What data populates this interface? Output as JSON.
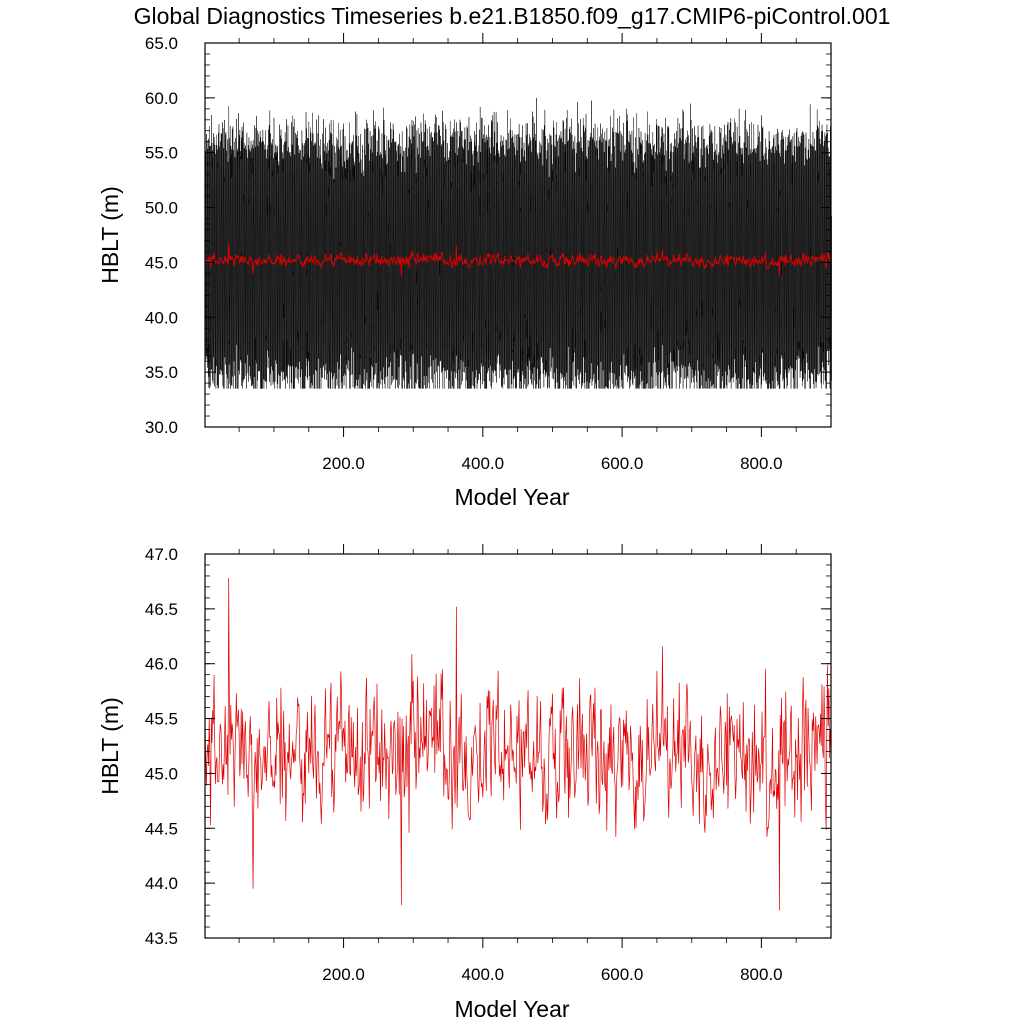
{
  "title": "Global Diagnostics Timeseries b.e21.B1850.f09_g17.CMIP6-piControl.001",
  "colors": {
    "monthly": "#000000",
    "annual": "#e00000",
    "axis": "#000000",
    "background": "#ffffff"
  },
  "chart_data": [
    {
      "type": "line",
      "xlabel": "Model Year",
      "ylabel": "HBLT (m)",
      "xlim": [
        1,
        900
      ],
      "ylim": [
        30.0,
        65.0
      ],
      "x_ticks": [
        "200.0",
        "400.0",
        "600.0",
        "800.0"
      ],
      "x_tick_values": [
        200,
        400,
        600,
        800
      ],
      "y_ticks": [
        "30.0",
        "35.0",
        "40.0",
        "45.0",
        "50.0",
        "55.0",
        "60.0",
        "65.0"
      ],
      "y_tick_values": [
        30,
        35,
        40,
        45,
        50,
        55,
        60,
        65
      ],
      "grid": false,
      "series": [
        {
          "style": "monthly mean",
          "color": "#000000",
          "x_start": 1,
          "x_end": 900,
          "mean": 45.2,
          "approx_min": 33.5,
          "approx_max": 60.5,
          "seasonal_amplitude": 10.5
        },
        {
          "style": "annual mean",
          "color": "#e00000",
          "x_start": 1,
          "x_end": 900,
          "mean": 45.2,
          "approx_min": 43.7,
          "approx_max": 46.8
        }
      ]
    },
    {
      "type": "line",
      "xlabel": "Model Year",
      "ylabel": "HBLT (m)",
      "xlim": [
        1,
        900
      ],
      "ylim": [
        43.5,
        47.0
      ],
      "x_ticks": [
        "200.0",
        "400.0",
        "600.0",
        "800.0"
      ],
      "x_tick_values": [
        200,
        400,
        600,
        800
      ],
      "y_ticks": [
        "43.5",
        "44.0",
        "44.5",
        "45.0",
        "45.5",
        "46.0",
        "46.5",
        "47.0"
      ],
      "y_tick_values": [
        43.5,
        44.0,
        44.5,
        45.0,
        45.5,
        46.0,
        46.5,
        47.0
      ],
      "grid": false,
      "series": [
        {
          "style": "annual mean",
          "color": "#e00000",
          "x_start": 1,
          "x_end": 900,
          "mean": 45.2,
          "approx_min": 43.75,
          "approx_max": 46.78,
          "notable_points": [
            [
              35,
              46.78
            ],
            [
              70,
              43.95
            ],
            [
              283,
              43.8
            ],
            [
              362,
              46.52
            ],
            [
              826,
              43.75
            ]
          ]
        }
      ]
    }
  ]
}
